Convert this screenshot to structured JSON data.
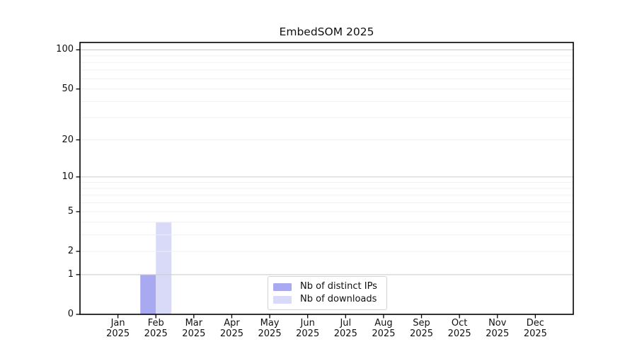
{
  "chart_data": {
    "type": "bar",
    "title": "EmbedSOM 2025",
    "categories": [
      "Jan 2025",
      "Feb 2025",
      "Mar 2025",
      "Apr 2025",
      "May 2025",
      "Jun 2025",
      "Jul 2025",
      "Aug 2025",
      "Sep 2025",
      "Oct 2025",
      "Nov 2025",
      "Dec 2025"
    ],
    "series": [
      {
        "name": "Nb of distinct IPs",
        "color": "#a8a9f0",
        "values": [
          0,
          1,
          0,
          0,
          0,
          0,
          0,
          0,
          0,
          0,
          0,
          0
        ]
      },
      {
        "name": "Nb of downloads",
        "color": "#d9daf7",
        "values": [
          0,
          4,
          0,
          0,
          0,
          0,
          0,
          0,
          0,
          0,
          0,
          0
        ]
      }
    ],
    "yscale": "log1p",
    "yticks": [
      100,
      50,
      20,
      10,
      5,
      2,
      1,
      0
    ],
    "ylim": [
      0,
      115
    ],
    "xlabel": "",
    "ylabel": "",
    "grid": "horizontal",
    "legend": {
      "position": "lower-center",
      "entries": [
        "Nb of distinct IPs",
        "Nb of downloads"
      ]
    }
  },
  "colors": {
    "axis": "#000000",
    "text": "#111111",
    "major_grid": "#cccccc",
    "minor_grid": "#f0f0f0",
    "legend_border": "#d2d2d2"
  }
}
